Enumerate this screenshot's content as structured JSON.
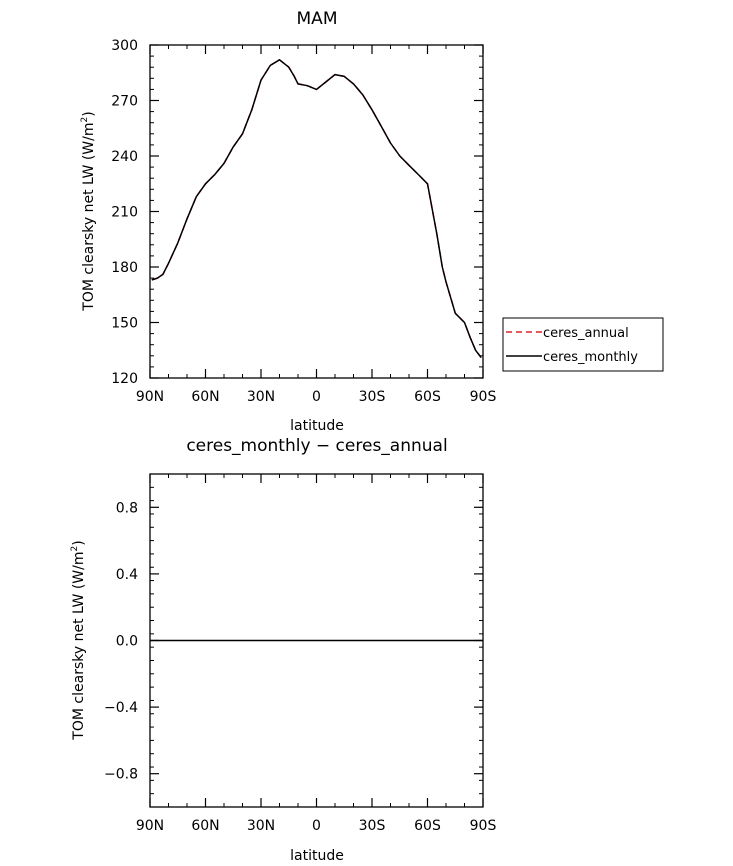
{
  "chart_data": [
    {
      "type": "line",
      "title": "MAM",
      "xlabel": "latitude",
      "ylabel": "TOM clearsky net LW (W/m",
      "ylabel_sup": "2",
      "ylabel_close": ")",
      "xlim": [
        90,
        -90
      ],
      "ylim": [
        120,
        300
      ],
      "xticks": [
        90,
        60,
        30,
        0,
        -30,
        -60,
        -90
      ],
      "xtick_labels": [
        "90N",
        "60N",
        "30N",
        "0",
        "30S",
        "60S",
        "90S"
      ],
      "yticks": [
        120,
        150,
        180,
        210,
        240,
        270,
        300
      ],
      "ytick_labels": [
        "120",
        "150",
        "180",
        "210",
        "240",
        "270",
        "300"
      ],
      "grid": false,
      "legend_position": "outside-right",
      "x": [
        89,
        86,
        83,
        80,
        75,
        70,
        65,
        60,
        55,
        50,
        45,
        40,
        35,
        30,
        25,
        20,
        15,
        12,
        10,
        5,
        0,
        -5,
        -10,
        -15,
        -20,
        -25,
        -30,
        -35,
        -40,
        -45,
        -50,
        -55,
        -60,
        -65,
        -68,
        -70,
        -75,
        -80,
        -83,
        -86,
        -89
      ],
      "series": [
        {
          "name": "ceres_annual",
          "color": "#e0202a",
          "dash": "6,4",
          "values": [
            173,
            174,
            176,
            182,
            193,
            206,
            218,
            225,
            230,
            236,
            245,
            252,
            265,
            281,
            289,
            292,
            288,
            283,
            279,
            278,
            276,
            280,
            284,
            283,
            279,
            273,
            265,
            256,
            247,
            240,
            235,
            230,
            225,
            198,
            180,
            172,
            155,
            150,
            142,
            135,
            131
          ]
        },
        {
          "name": "ceres_monthly",
          "color": "#000000",
          "dash": "",
          "values": [
            173,
            174,
            176,
            182,
            193,
            206,
            218,
            225,
            230,
            236,
            245,
            252,
            265,
            281,
            289,
            292,
            288,
            283,
            279,
            278,
            276,
            280,
            284,
            283,
            279,
            273,
            265,
            256,
            247,
            240,
            235,
            230,
            225,
            198,
            180,
            172,
            155,
            150,
            142,
            135,
            131
          ]
        }
      ]
    },
    {
      "type": "line",
      "title": "ceres_monthly − ceres_annual",
      "xlabel": "latitude",
      "ylabel": "TOM clearsky net LW (W/m",
      "ylabel_sup": "2",
      "ylabel_close": ")",
      "xlim": [
        90,
        -90
      ],
      "ylim": [
        -1,
        1
      ],
      "xticks": [
        90,
        60,
        30,
        0,
        -30,
        -60,
        -90
      ],
      "xtick_labels": [
        "90N",
        "60N",
        "30N",
        "0",
        "30S",
        "60S",
        "90S"
      ],
      "yticks": [
        -0.8,
        -0.4,
        0.0,
        0.4,
        0.8
      ],
      "ytick_labels": [
        "−0.8",
        "−0.4",
        "0.0",
        "0.4",
        "0.8"
      ],
      "grid": false,
      "series": [
        {
          "color": "#000000",
          "x": [
            90,
            -90
          ],
          "values": [
            0,
            0
          ]
        }
      ]
    }
  ]
}
